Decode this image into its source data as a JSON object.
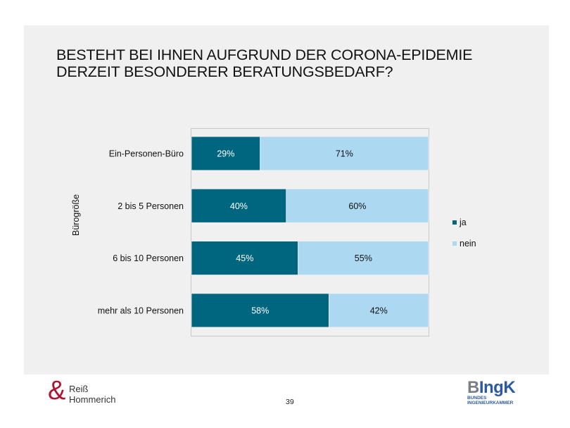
{
  "slide": {
    "title_lines": [
      "BESTEHT BEI IHNEN AUFGRUND DER CORONA-EPIDEMIE",
      "DERZEIT BESONDERER BERATUNGSBEDARF?"
    ],
    "page_number": "39"
  },
  "logos": {
    "left": {
      "symbol": "&",
      "line1": "Reiß",
      "line2": "Hommerich"
    },
    "right": {
      "main_b": "B",
      "main_rest": "IngK",
      "line1": "BUNDES",
      "line2": "INGENIEURKAMMER"
    }
  },
  "colors": {
    "ja": "#006680",
    "nein": "#acd8f2",
    "plot_border": "#c8c8c8"
  },
  "chart_data": {
    "type": "bar",
    "orientation": "horizontal",
    "stacked": true,
    "percent": true,
    "title": "BESTEHT BEI IHNEN AUFGRUND DER CORONA-EPIDEMIE DERZEIT BESONDERER BERATUNGSBEDARF?",
    "ylabel": "Bürogröße",
    "xlabel": "",
    "xlim": [
      0,
      100
    ],
    "grid": false,
    "legend_position": "right",
    "categories": [
      "Ein-Personen-Büro",
      "2 bis 5 Personen",
      "6 bis 10 Personen",
      "mehr als 10 Personen"
    ],
    "series": [
      {
        "name": "ja",
        "values": [
          29,
          40,
          45,
          58
        ],
        "labels": [
          "29%",
          "40%",
          "45%",
          "58%"
        ]
      },
      {
        "name": "nein",
        "values": [
          71,
          60,
          55,
          42
        ],
        "labels": [
          "71%",
          "60%",
          "55%",
          "42%"
        ]
      }
    ]
  }
}
